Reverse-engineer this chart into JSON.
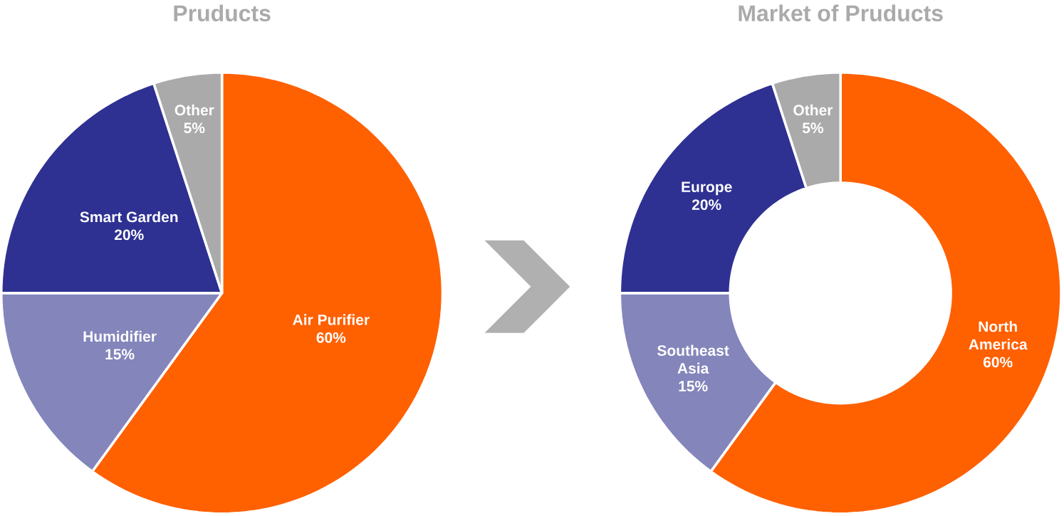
{
  "chart_data": [
    {
      "type": "pie",
      "title": "Pruducts",
      "categories": [
        "Air Purifier",
        "Humidifier",
        "Smart Garden",
        "Other"
      ],
      "values": [
        60,
        15,
        20,
        5
      ],
      "value_labels": [
        "60%",
        "15%",
        "20%",
        "5%"
      ],
      "colors": [
        "#ff6000",
        "#8385bb",
        "#2e3192",
        "#aaaaaa"
      ]
    },
    {
      "type": "donut",
      "title": "Market of Pruducts",
      "categories": [
        "North America",
        "Southeast Asia",
        "Europe",
        "Other"
      ],
      "values": [
        60,
        15,
        20,
        5
      ],
      "value_labels": [
        "60%",
        "15%",
        "20%",
        "5%"
      ],
      "colors": [
        "#ff6000",
        "#8385bb",
        "#2e3192",
        "#aaaaaa"
      ]
    }
  ]
}
